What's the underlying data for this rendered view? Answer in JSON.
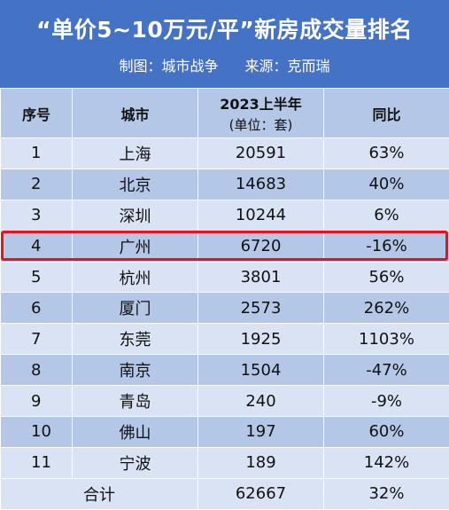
{
  "title": "“单价5~10万元/平”新房成交量排名",
  "subtitle": {
    "maker": "制图：城市战争",
    "source": "来源：克而瑞"
  },
  "table": {
    "headers": {
      "rank": "序号",
      "city": "城市",
      "volume_main": "2023上半年",
      "volume_unit": "(单位：套)",
      "yoy": "同比"
    },
    "rows": [
      {
        "rank": "1",
        "city": "上海",
        "volume": "20591",
        "yoy": "63%"
      },
      {
        "rank": "2",
        "city": "北京",
        "volume": "14683",
        "yoy": "40%"
      },
      {
        "rank": "3",
        "city": "深圳",
        "volume": "10244",
        "yoy": "6%"
      },
      {
        "rank": "4",
        "city": "广州",
        "volume": "6720",
        "yoy": "-16%"
      },
      {
        "rank": "5",
        "city": "杭州",
        "volume": "3801",
        "yoy": "56%"
      },
      {
        "rank": "6",
        "city": "厦门",
        "volume": "2573",
        "yoy": "262%"
      },
      {
        "rank": "7",
        "city": "东莞",
        "volume": "1925",
        "yoy": "1103%"
      },
      {
        "rank": "8",
        "city": "南京",
        "volume": "1504",
        "yoy": "-47%"
      },
      {
        "rank": "9",
        "city": "青岛",
        "volume": "240",
        "yoy": "-9%"
      },
      {
        "rank": "10",
        "city": "佛山",
        "volume": "197",
        "yoy": "60%"
      },
      {
        "rank": "11",
        "city": "宁波",
        "volume": "189",
        "yoy": "142%"
      }
    ],
    "total": {
      "label": "合计",
      "volume": "62667",
      "yoy": "32%"
    }
  },
  "colors": {
    "header_bg": "#4472C4",
    "row_light": "#DAE3F3",
    "row_dark": "#B4C7E7",
    "highlight_border": "#E8121B"
  }
}
